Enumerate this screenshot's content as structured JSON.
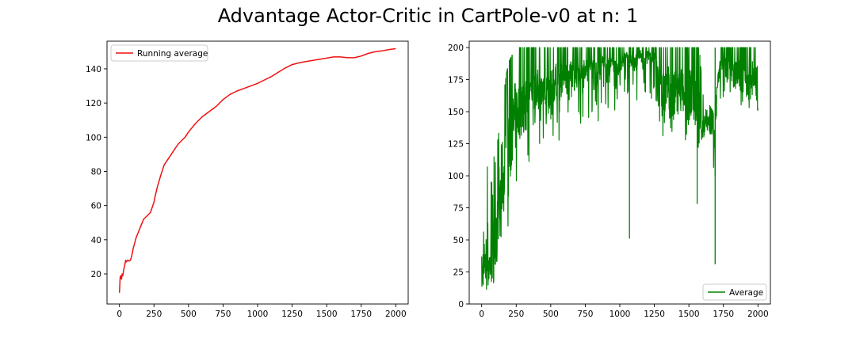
{
  "figure": {
    "title": "Advantage Actor-Critic in CartPole-v0 at n: 1"
  },
  "chart_data": [
    {
      "type": "line",
      "legend": {
        "label": "Running average",
        "placement": "top-left"
      },
      "color": "#ee1111",
      "xlim": [
        -90,
        2090
      ],
      "ylim": [
        2.4,
        156.2
      ],
      "xticks": [
        0,
        250,
        500,
        750,
        1000,
        1250,
        1500,
        1750,
        2000
      ],
      "yticks": [
        20,
        40,
        60,
        80,
        100,
        120,
        140
      ],
      "grid": false,
      "series": [
        {
          "x": [
            0,
            5,
            10,
            15,
            20,
            25,
            30,
            35,
            40,
            45,
            50,
            60,
            70,
            80,
            90,
            100,
            110,
            120,
            130,
            150,
            175,
            200,
            225,
            250,
            260,
            275,
            300,
            325,
            350,
            375,
            400,
            425,
            450,
            475,
            500,
            550,
            600,
            650,
            700,
            750,
            800,
            850,
            900,
            950,
            1000,
            1050,
            1100,
            1150,
            1200,
            1250,
            1300,
            1350,
            1400,
            1450,
            1500,
            1550,
            1600,
            1650,
            1700,
            1750,
            1800,
            1850,
            1900,
            1950,
            2000
          ],
          "y": [
            9,
            18,
            19,
            17,
            20,
            19,
            22,
            24,
            26,
            28,
            27,
            28,
            27.5,
            28,
            31,
            35,
            38,
            41,
            43,
            47,
            52,
            54,
            56,
            62,
            66,
            71,
            78,
            84,
            87,
            90,
            93,
            96,
            98,
            100,
            103,
            108,
            112,
            115,
            118,
            122,
            125,
            127,
            128.5,
            130,
            131.5,
            133.5,
            135.5,
            138,
            140.5,
            142.5,
            143.5,
            144.3,
            145,
            145.6,
            146.3,
            147,
            147,
            146.5,
            146.5,
            147.5,
            149,
            150,
            150.5,
            151.3,
            151.8
          ]
        }
      ]
    },
    {
      "type": "line",
      "legend": {
        "label": "Average",
        "placement": "bottom-right"
      },
      "color": "#008000",
      "xlim": [
        -90,
        2090
      ],
      "ylim": [
        0,
        205
      ],
      "xticks": [
        0,
        250,
        500,
        750,
        1000,
        1250,
        1500,
        1750,
        2000
      ],
      "yticks": [
        0,
        25,
        50,
        75,
        100,
        125,
        150,
        175,
        200
      ],
      "grid": false,
      "series": [
        {
          "x": [
            0,
            5,
            10,
            20,
            30,
            40,
            50,
            60,
            70,
            80,
            90,
            100,
            120,
            140,
            160,
            180,
            200,
            225,
            250,
            275,
            300,
            325,
            350,
            375,
            400,
            425,
            450,
            475,
            500,
            525,
            550,
            575,
            600,
            625,
            650,
            675,
            700,
            725,
            750,
            775,
            800,
            825,
            850,
            875,
            900,
            925,
            950,
            975,
            1000,
            1025,
            1050,
            1070,
            1080,
            1100,
            1125,
            1150,
            1175,
            1200,
            1225,
            1250,
            1275,
            1300,
            1325,
            1350,
            1375,
            1400,
            1425,
            1450,
            1475,
            1500,
            1525,
            1550,
            1560,
            1575,
            1600,
            1625,
            1650,
            1675,
            1690,
            1700,
            1725,
            1750,
            1775,
            1800,
            1825,
            1850,
            1875,
            1900,
            1925,
            1950,
            1975,
            2000
          ],
          "min": [
            10,
            10,
            9,
            10,
            12,
            11,
            14,
            12,
            15,
            13,
            18,
            20,
            30,
            35,
            40,
            48,
            55,
            60,
            80,
            95,
            100,
            105,
            110,
            112,
            105,
            120,
            125,
            118,
            110,
            125,
            130,
            120,
            140,
            135,
            145,
            140,
            150,
            135,
            155,
            145,
            150,
            130,
            145,
            160,
            155,
            150,
            160,
            140,
            150,
            155,
            160,
            51,
            160,
            150,
            155,
            160,
            150,
            165,
            160,
            160,
            150,
            120,
            130,
            140,
            105,
            120,
            130,
            140,
            110,
            120,
            130,
            120,
            78,
            110,
            108,
            115,
            120,
            110,
            31,
            120,
            150,
            160,
            150,
            155,
            150,
            160,
            150,
            155,
            148,
            150,
            155,
            150
          ],
          "max": [
            37,
            30,
            65,
            45,
            60,
            112,
            80,
            60,
            100,
            85,
            116,
            110,
            130,
            150,
            165,
            180,
            190,
            195,
            200,
            200,
            200,
            200,
            200,
            200,
            200,
            200,
            200,
            200,
            200,
            200,
            200,
            200,
            200,
            200,
            200,
            200,
            200,
            200,
            200,
            200,
            200,
            200,
            200,
            200,
            200,
            200,
            200,
            200,
            200,
            200,
            200,
            200,
            200,
            200,
            200,
            200,
            200,
            200,
            200,
            200,
            200,
            200,
            200,
            200,
            200,
            200,
            200,
            200,
            200,
            200,
            200,
            200,
            200,
            200,
            165,
            150,
            155,
            150,
            140,
            170,
            200,
            200,
            200,
            200,
            200,
            200,
            200,
            200,
            200,
            200,
            200,
            200
          ],
          "typical": [
            15,
            20,
            25,
            22,
            30,
            35,
            30,
            28,
            40,
            35,
            45,
            55,
            70,
            90,
            100,
            115,
            125,
            135,
            145,
            150,
            155,
            150,
            160,
            155,
            165,
            160,
            170,
            165,
            160,
            170,
            175,
            170,
            180,
            175,
            180,
            175,
            185,
            170,
            185,
            180,
            185,
            175,
            180,
            190,
            185,
            180,
            190,
            175,
            185,
            190,
            195,
            180,
            190,
            185,
            190,
            195,
            185,
            195,
            190,
            195,
            180,
            160,
            165,
            170,
            150,
            160,
            165,
            170,
            150,
            160,
            165,
            150,
            130,
            140,
            135,
            140,
            140,
            135,
            120,
            165,
            185,
            190,
            180,
            185,
            175,
            180,
            175,
            180,
            170,
            175,
            180,
            165
          ]
        }
      ]
    }
  ]
}
